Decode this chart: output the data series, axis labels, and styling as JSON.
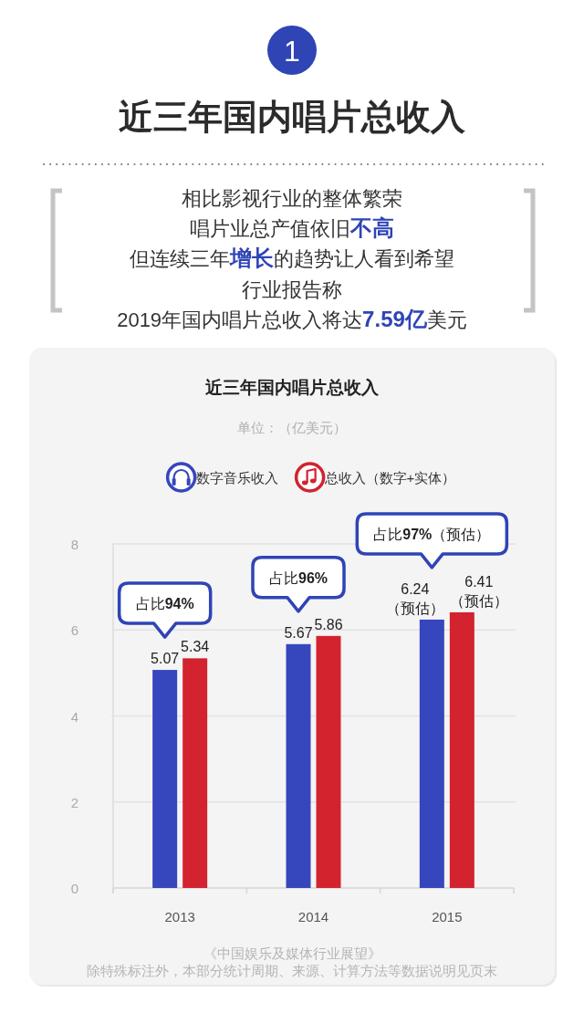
{
  "chart_data": {
    "type": "bar",
    "title": "近三年国内唱片总收入",
    "subtitle": "单位：（亿美元）",
    "categories": [
      "2013",
      "2014",
      "2015"
    ],
    "series": [
      {
        "name": "数字音乐收入",
        "color": "#3646bd",
        "values": [
          5.07,
          5.67,
          6.24
        ],
        "value_labels": [
          "5.07",
          "5.67",
          "6.24\n（预估）"
        ]
      },
      {
        "name": "总收入（数字+实体）",
        "color": "#d2232f",
        "values": [
          5.34,
          5.86,
          6.41
        ],
        "value_labels": [
          "5.34",
          "5.86",
          "6.41\n（预估）"
        ]
      }
    ],
    "ylim": [
      0,
      8
    ],
    "yticks": [
      0,
      2,
      4,
      6,
      8
    ],
    "grid": "y",
    "legend": "top",
    "annotations": [
      "1",
      "近三年国内唱片总收入",
      "相比影视行业的整体繁荣",
      "唱片业总产值依旧**不高**",
      "但连续三年**增长**的趋势让人看到希望",
      "行业报告称",
      "2019年国内唱片总收入将达**7.59亿**美元",
      "占比**94%**",
      "占比**96%**",
      "占比**97%**（预估）",
      "《中国娱乐及媒体行业展望》",
      "除特殊标注外，本部分统计周期、来源、计算方法等数据说明见页末"
    ]
  }
}
